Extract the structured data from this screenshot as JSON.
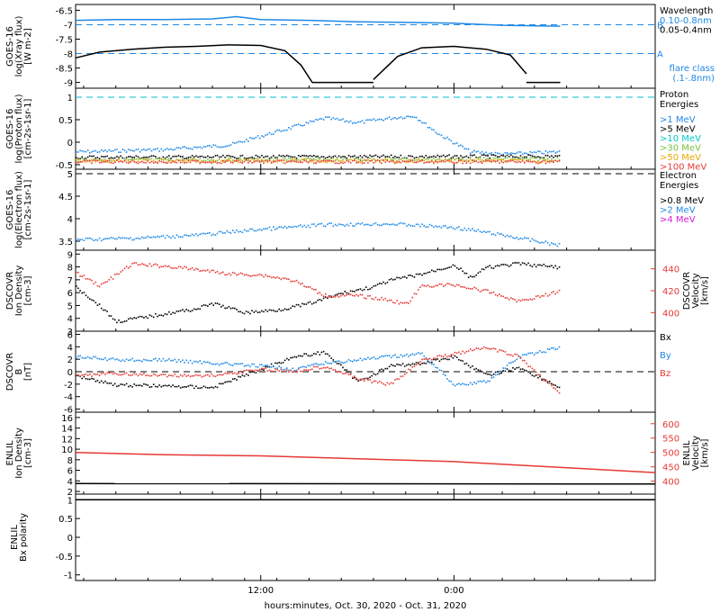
{
  "time_axis": {
    "xlabel": "hours:minutes, Oct. 30, 2020 - Oct. 31, 2020",
    "ticks": [
      {
        "hour": 12,
        "label": "12:00"
      },
      {
        "hour": 24,
        "label": "0:00"
      }
    ],
    "range_hours": [
      0.5,
      36.5
    ],
    "data_end_hour": 30.6
  },
  "chart_data": [
    {
      "id": "xray",
      "type": "line",
      "ylabel_lines": [
        "GOES-16",
        "log(Xray flux)",
        "[W m-2]"
      ],
      "ylim": [
        -9.2,
        -6.3
      ],
      "yticks": [
        -9.0,
        -8.5,
        -8.0,
        -7.5,
        -7.0,
        -6.5
      ],
      "legend_title": "Wavelength",
      "legend": [
        {
          "name": "0.10-0.8nm",
          "color": "#1e88e5"
        },
        {
          "name": "0.05-0.4nm",
          "color": "#000000"
        }
      ],
      "levels": [
        {
          "value": -7.0,
          "label": "B",
          "color": "#1e88e5"
        },
        {
          "value": -8.0,
          "label": "A",
          "color": "#1e88e5"
        }
      ],
      "note_lines": [
        "flare class",
        "(.1-.8nm)"
      ],
      "series": [
        {
          "color": "#1e88e5",
          "x": [
            0.5,
            3,
            6,
            9,
            10.5,
            12,
            15,
            18,
            21,
            24,
            27,
            30.6
          ],
          "y": [
            -6.85,
            -6.82,
            -6.82,
            -6.8,
            -6.72,
            -6.82,
            -6.85,
            -6.9,
            -6.92,
            -6.95,
            -7.02,
            -7.05
          ]
        },
        {
          "color": "#000000",
          "x": [
            0.5,
            2,
            4,
            6,
            8,
            10,
            12,
            13.5,
            14.5,
            15.2
          ],
          "y": [
            -8.15,
            -7.95,
            -7.85,
            -7.78,
            -7.75,
            -7.7,
            -7.72,
            -7.9,
            -8.4,
            -9.0
          ]
        },
        {
          "color": "#000000",
          "x": [
            19.0,
            20.5,
            22,
            24,
            26,
            27.5,
            28.5
          ],
          "y": [
            -8.9,
            -8.1,
            -7.8,
            -7.75,
            -7.85,
            -8.05,
            -8.7
          ]
        },
        {
          "color": "#000000",
          "x": [
            15.2,
            19.0
          ],
          "y": [
            -9.0,
            -9.0
          ]
        },
        {
          "color": "#000000",
          "x": [
            28.5,
            30.6
          ],
          "y": [
            -9.0,
            -9.0
          ]
        }
      ]
    },
    {
      "id": "protons",
      "type": "scatter",
      "ylabel_lines": [
        "GOES-16",
        "log(Proton flux)",
        "[cm-2s-1sr-1]"
      ],
      "ylim": [
        -0.6,
        1.2
      ],
      "yticks": [
        -0.5,
        0.0,
        0.5,
        1.0
      ],
      "legend_title_lines": [
        "Proton",
        "Energies"
      ],
      "legend": [
        {
          "name": ">1 MeV",
          "color": "#1e88e5"
        },
        {
          "name": ">5 MeV",
          "color": "#000000"
        },
        {
          "name": ">10 MeV",
          "color": "#00c8c8"
        },
        {
          "name": ">30 MeV",
          "color": "#7ac143"
        },
        {
          "name": ">50 MeV",
          "color": "#e6a800"
        },
        {
          "name": ">100 MeV",
          "color": "#e53935"
        }
      ],
      "levels": [
        {
          "value": 1.0,
          "color": "#00bcd4"
        }
      ],
      "series": [
        {
          "name": ">1 MeV",
          "color": "#1e88e5",
          "x": [
            0.5,
            6,
            10,
            12,
            14,
            16,
            18,
            20,
            21.5,
            23,
            25,
            27,
            30.6
          ],
          "y": [
            -0.2,
            -0.15,
            -0.05,
            0.15,
            0.35,
            0.55,
            0.45,
            0.55,
            0.6,
            0.2,
            -0.2,
            -0.25,
            -0.2
          ]
        },
        {
          "name": ">5 MeV",
          "color": "#000000",
          "x": [
            0.5,
            30.6
          ],
          "y": [
            -0.32,
            -0.3
          ]
        },
        {
          "name": ">30 MeV",
          "color": "#7ac143",
          "x": [
            0.5,
            30.6
          ],
          "y": [
            -0.38,
            -0.36
          ]
        },
        {
          "name": ">50 MeV",
          "color": "#e6a800",
          "x": [
            0.5,
            30.6
          ],
          "y": [
            -0.4,
            -0.4
          ]
        },
        {
          "name": ">100 MeV",
          "color": "#e53935",
          "x": [
            0.5,
            30.6
          ],
          "y": [
            -0.42,
            -0.42
          ]
        }
      ]
    },
    {
      "id": "electrons",
      "type": "scatter",
      "ylabel_lines": [
        "GOES-16",
        "log(Electron flux)",
        "[cm-2s-1sr-1]"
      ],
      "ylim": [
        3.3,
        5.1
      ],
      "yticks": [
        3.5,
        4.0,
        4.5,
        5.0
      ],
      "legend_title_lines": [
        "Electron",
        "Energies"
      ],
      "legend": [
        {
          "name": ">0.8 MeV",
          "color": "#000000"
        },
        {
          "name": ">2 MeV",
          "color": "#1e88e5"
        },
        {
          "name": ">4 MeV",
          "color": "#d81bd8"
        }
      ],
      "levels": [
        {
          "value": 5.0,
          "color": "#000000"
        }
      ],
      "series": [
        {
          "name": ">2 MeV",
          "color": "#1e88e5",
          "x": [
            0.5,
            4,
            8,
            12,
            16,
            20,
            24,
            27,
            30.6
          ],
          "y": [
            3.55,
            3.58,
            3.65,
            3.78,
            3.88,
            3.9,
            3.82,
            3.65,
            3.42
          ]
        }
      ]
    },
    {
      "id": "dscovr-plasma",
      "type": "scatter",
      "ylabel_lines": [
        "DSCOVR",
        "Ion Density",
        "[cm-3]"
      ],
      "ylim": [
        3.0,
        9.3
      ],
      "yticks": [
        3,
        4,
        5,
        6,
        7,
        8,
        9
      ],
      "y2label_lines": [
        "DSCOVR",
        "Velocity",
        "[km/s]"
      ],
      "y2lim": [
        383,
        457
      ],
      "y2ticks": [
        400,
        420,
        440
      ],
      "series": [
        {
          "name": "Ion Density",
          "axis": "left",
          "color": "#000000",
          "x": [
            0.5,
            2,
            3,
            5,
            8,
            9,
            11,
            13,
            15,
            17,
            19,
            20,
            22,
            24,
            25,
            26,
            28,
            30.6
          ],
          "y": [
            6.5,
            5.0,
            3.8,
            4.2,
            4.8,
            5.2,
            4.5,
            4.7,
            5.2,
            6.0,
            6.5,
            7.0,
            7.5,
            8.2,
            7.2,
            8.0,
            8.3,
            8.0
          ]
        },
        {
          "name": "Velocity",
          "axis": "right",
          "color": "#e53935",
          "x": [
            0.5,
            2,
            4,
            6,
            8,
            10,
            12,
            14,
            16,
            18,
            20,
            21,
            22,
            24,
            26,
            28,
            30.6
          ],
          "y": [
            437,
            425,
            445,
            443,
            440,
            436,
            435,
            430,
            416,
            416,
            412,
            408,
            425,
            426,
            420,
            411,
            420
          ]
        }
      ]
    },
    {
      "id": "dscovr-mag",
      "type": "scatter",
      "ylabel_lines": [
        "DSCOVR",
        "B",
        "[nT]"
      ],
      "ylim": [
        -6.5,
        6.5
      ],
      "yticks": [
        -6,
        -4,
        -2,
        0,
        2,
        4,
        6
      ],
      "legend": [
        {
          "name": "Bx",
          "color": "#000000"
        },
        {
          "name": "By",
          "color": "#1e88e5"
        },
        {
          "name": "Bz",
          "color": "#e53935"
        }
      ],
      "levels": [
        {
          "value": 0,
          "color": "#000000"
        }
      ],
      "series": [
        {
          "name": "Bx",
          "color": "#000000",
          "x": [
            0.5,
            3,
            6,
            9,
            12,
            14,
            16,
            18,
            20,
            22,
            24,
            26,
            28,
            30.6
          ],
          "y": [
            -0.5,
            -2.0,
            -2.2,
            -2.4,
            0.5,
            2.5,
            3.2,
            -1.5,
            1.0,
            1.5,
            2.5,
            -0.5,
            0.8,
            -2.5
          ]
        },
        {
          "name": "By",
          "color": "#1e88e5",
          "x": [
            0.5,
            3,
            6,
            9,
            12,
            14,
            16,
            18,
            20,
            22,
            24,
            26,
            28,
            30.6
          ],
          "y": [
            2.5,
            2.0,
            2.0,
            1.5,
            1.0,
            0.5,
            1.5,
            2.0,
            2.5,
            3.0,
            -2.0,
            -1.5,
            2.5,
            4.0
          ]
        },
        {
          "name": "Bz",
          "color": "#e53935",
          "x": [
            0.5,
            3,
            6,
            9,
            12,
            14,
            16,
            18,
            20,
            22,
            24,
            26,
            28,
            30.6
          ],
          "y": [
            -0.5,
            -0.2,
            -0.5,
            -0.5,
            0.5,
            0.2,
            1.0,
            -1.0,
            -2.0,
            2.0,
            3.0,
            4.0,
            2.5,
            -3.5
          ]
        }
      ]
    },
    {
      "id": "enlil-plasma",
      "type": "line",
      "ylabel_lines": [
        "ENLIL",
        "Ion Density",
        "[cm-3]"
      ],
      "ylim": [
        1.5,
        17.0
      ],
      "yticks": [
        2,
        4,
        6,
        8,
        10,
        12,
        14,
        16
      ],
      "y2label_lines": [
        "ENLIL",
        "Velocity",
        "[km/s]"
      ],
      "y2lim": [
        355,
        640
      ],
      "y2ticks": [
        400,
        450,
        500,
        550,
        600
      ],
      "series": [
        {
          "name": "Velocity",
          "axis": "right",
          "color": "#e53935",
          "x": [
            0.5,
            6,
            12,
            18,
            24,
            30,
            36.5
          ],
          "y": [
            500,
            492,
            488,
            478,
            468,
            450,
            430
          ]
        },
        {
          "name": "Ion Density",
          "axis": "left",
          "color": "#000000",
          "x": [
            0.5,
            36.5
          ],
          "y": [
            3.5,
            3.4
          ]
        }
      ]
    },
    {
      "id": "enlil-polarity",
      "type": "line",
      "ylabel_lines": [
        "ENLIL",
        "Bx polarity"
      ],
      "ylim": [
        -1.15,
        1.15
      ],
      "yticks": [
        -1.0,
        -0.5,
        0.0,
        0.5,
        1.0
      ],
      "series": [
        {
          "name": "Bx polarity",
          "color": "#000000",
          "x": [
            0.5,
            36.5
          ],
          "y": [
            1.0,
            1.0
          ]
        }
      ]
    }
  ]
}
